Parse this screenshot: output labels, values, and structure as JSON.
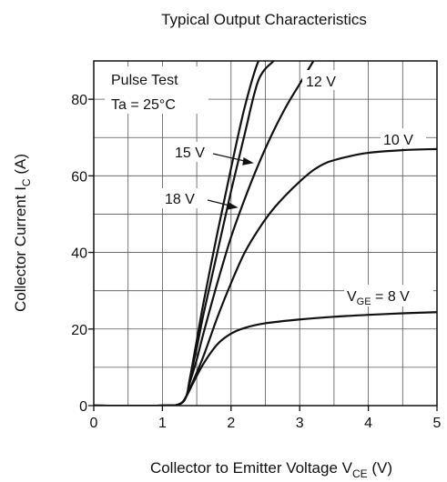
{
  "chart_data": {
    "type": "line",
    "title": "Typical Output Characteristics",
    "xlabel": {
      "main": "Collector to Emitter Voltage  V",
      "sub": "CE",
      "unit": " (V)"
    },
    "ylabel": {
      "main": "Collector Current  I",
      "sub": "C",
      "unit": "  (A)"
    },
    "xlim": [
      0,
      5
    ],
    "ylim": [
      0,
      90
    ],
    "xticks": [
      0,
      1,
      2,
      3,
      4,
      5
    ],
    "yticks": [
      0,
      20,
      40,
      60,
      80
    ],
    "grid": true,
    "annotations": [
      "Pulse Test",
      "Ta = 25°C"
    ],
    "series": [
      {
        "name": "18 V",
        "x": [
          0,
          1.0,
          1.25,
          1.35,
          1.4,
          1.5,
          1.6,
          1.8,
          2.0,
          2.2,
          2.4,
          2.5
        ],
        "y": [
          0,
          0,
          0.4,
          2.5,
          7,
          17,
          27,
          45,
          62,
          78,
          90,
          90
        ]
      },
      {
        "name": "15 V",
        "x": [
          0,
          1.0,
          1.25,
          1.35,
          1.4,
          1.5,
          1.6,
          1.8,
          2.0,
          2.2,
          2.4,
          2.62
        ],
        "y": [
          0,
          0,
          0.4,
          2.5,
          7,
          15,
          24,
          40,
          56,
          71,
          85,
          90
        ]
      },
      {
        "name": "12 V",
        "x": [
          0,
          1.0,
          1.25,
          1.35,
          1.4,
          1.5,
          1.6,
          1.8,
          2.0,
          2.2,
          2.4,
          2.6,
          2.8,
          3.0,
          3.2
        ],
        "y": [
          0,
          0,
          0.4,
          2.5,
          6,
          12,
          19,
          32,
          44,
          54,
          63,
          71,
          78,
          84,
          90
        ]
      },
      {
        "name": "10 V",
        "x": [
          0,
          1.0,
          1.25,
          1.35,
          1.45,
          1.6,
          1.8,
          2.0,
          2.2,
          2.4,
          2.6,
          2.8,
          3.0,
          3.2,
          3.4,
          3.7,
          4.0,
          4.5,
          5.0
        ],
        "y": [
          0,
          0,
          0.4,
          2.5,
          6.5,
          13,
          23,
          32,
          40,
          46,
          51,
          55,
          58.5,
          61.5,
          63.5,
          65,
          66,
          66.7,
          67
        ]
      },
      {
        "name": "8 V",
        "x": [
          0,
          1.0,
          1.25,
          1.35,
          1.45,
          1.6,
          1.8,
          2.0,
          2.2,
          2.5,
          3.0,
          3.5,
          4.0,
          4.5,
          5.0
        ],
        "y": [
          0,
          0,
          0.4,
          2.5,
          6,
          11,
          16,
          18.8,
          20.3,
          21.5,
          22.5,
          23.2,
          23.7,
          24.1,
          24.4
        ]
      }
    ],
    "labels": {
      "v18": "18 V",
      "v15": "15 V",
      "v12": "12 V",
      "v10": "10 V",
      "vge_prefix": "V",
      "vge_sub": "GE",
      "vge_suffix": " = 8 V"
    }
  }
}
